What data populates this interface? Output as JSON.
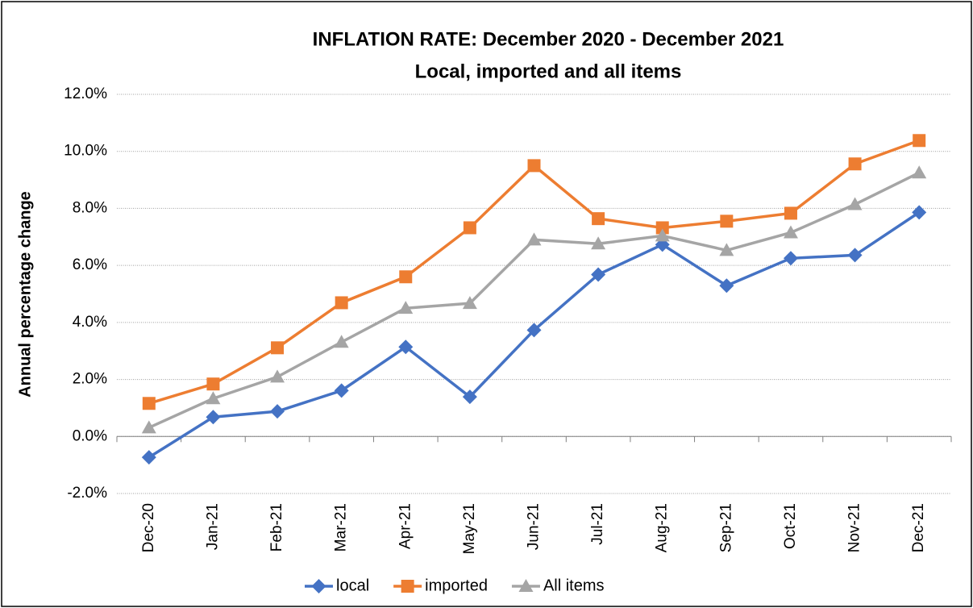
{
  "chart_data": {
    "type": "line",
    "title": "INFLATION RATE: December 2020 - December 2021",
    "subtitle": "Local, imported and all items",
    "y_label": "Annual percentage change",
    "categories": [
      "Dec-20",
      "Jan-21",
      "Feb-21",
      "Mar-21",
      "Apr-21",
      "May-21",
      "Jun-21",
      "Jul-21",
      "Aug-21",
      "Sep-21",
      "Oct-21",
      "Nov-21",
      "Dec-21"
    ],
    "series": [
      {
        "name": "local",
        "color": "#4472c4",
        "marker": "diamond",
        "values": [
          -0.73,
          0.68,
          0.88,
          1.61,
          3.14,
          1.39,
          3.73,
          5.68,
          6.73,
          5.29,
          6.25,
          6.36,
          7.86
        ]
      },
      {
        "name": "imported",
        "color": "#ed7d31",
        "marker": "square",
        "values": [
          1.16,
          1.84,
          3.11,
          4.69,
          5.6,
          7.32,
          9.5,
          7.64,
          7.32,
          7.55,
          7.83,
          9.56,
          10.38
        ]
      },
      {
        "name": "All items",
        "color": "#a5a5a5",
        "marker": "triangle",
        "values": [
          0.31,
          1.33,
          2.09,
          3.31,
          4.5,
          4.67,
          6.9,
          6.76,
          7.04,
          6.53,
          7.15,
          8.14,
          9.25
        ]
      }
    ],
    "ylim": [
      -2,
      12
    ],
    "yticks": [
      {
        "value": -2,
        "label": "-2.0%"
      },
      {
        "value": 0,
        "label": "0.0%"
      },
      {
        "value": 2,
        "label": "2.0%"
      },
      {
        "value": 4,
        "label": "4.0%"
      },
      {
        "value": 6,
        "label": "6.0%"
      },
      {
        "value": 8,
        "label": "8.0%"
      },
      {
        "value": 10,
        "label": "10.0%"
      },
      {
        "value": 12,
        "label": "12.0%"
      }
    ],
    "grid": true,
    "legend": "bottom"
  }
}
